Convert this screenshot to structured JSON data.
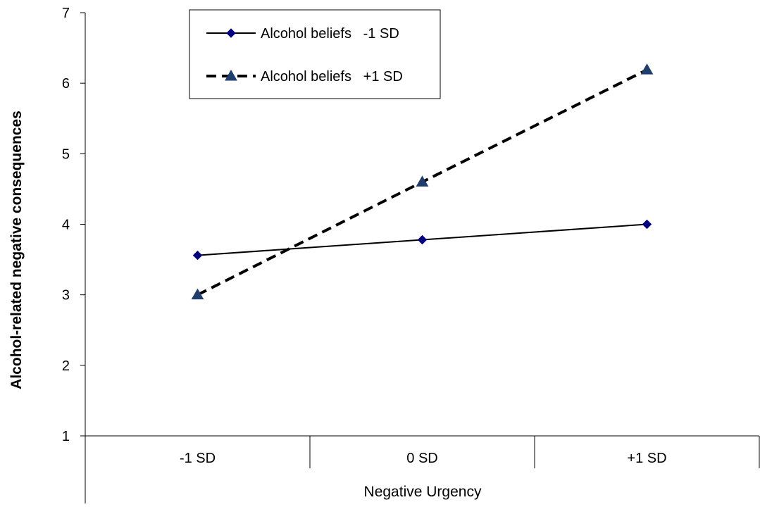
{
  "chart_data": {
    "type": "line",
    "categories": [
      "-1 SD",
      "0 SD",
      "+1 SD"
    ],
    "series": [
      {
        "name": "Alcohol beliefs   -1 SD",
        "values": [
          3.56,
          3.78,
          4.0
        ],
        "color": "#000080",
        "marker": "diamond",
        "line": "solid"
      },
      {
        "name": "Alcohol beliefs   +1 SD",
        "values": [
          3.0,
          4.6,
          6.19
        ],
        "color": "#1F3E6E",
        "marker": "triangle",
        "line": "dashed"
      }
    ],
    "xlabel": "Negative Urgency",
    "ylabel": "Alcohol-related negative consequences",
    "ylim": [
      1,
      7
    ],
    "yticks": [
      "1",
      "2",
      "3",
      "4",
      "5",
      "6",
      "7"
    ],
    "grid": false,
    "legend_position": "top-left"
  }
}
